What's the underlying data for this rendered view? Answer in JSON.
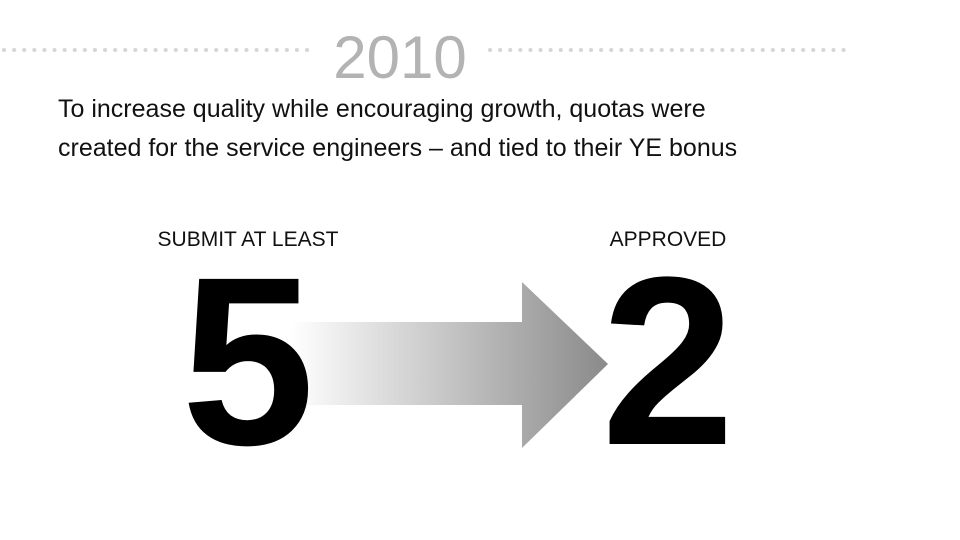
{
  "header": {
    "title": "2010"
  },
  "body": {
    "lines": [
      "To increase quality while encouraging growth, quotas were",
      "created for the service engineers – and tied to their YE bonus"
    ]
  },
  "left": {
    "label": "SUBMIT AT LEAST",
    "number": "5"
  },
  "right": {
    "label": "APPROVED",
    "number": "2"
  }
}
